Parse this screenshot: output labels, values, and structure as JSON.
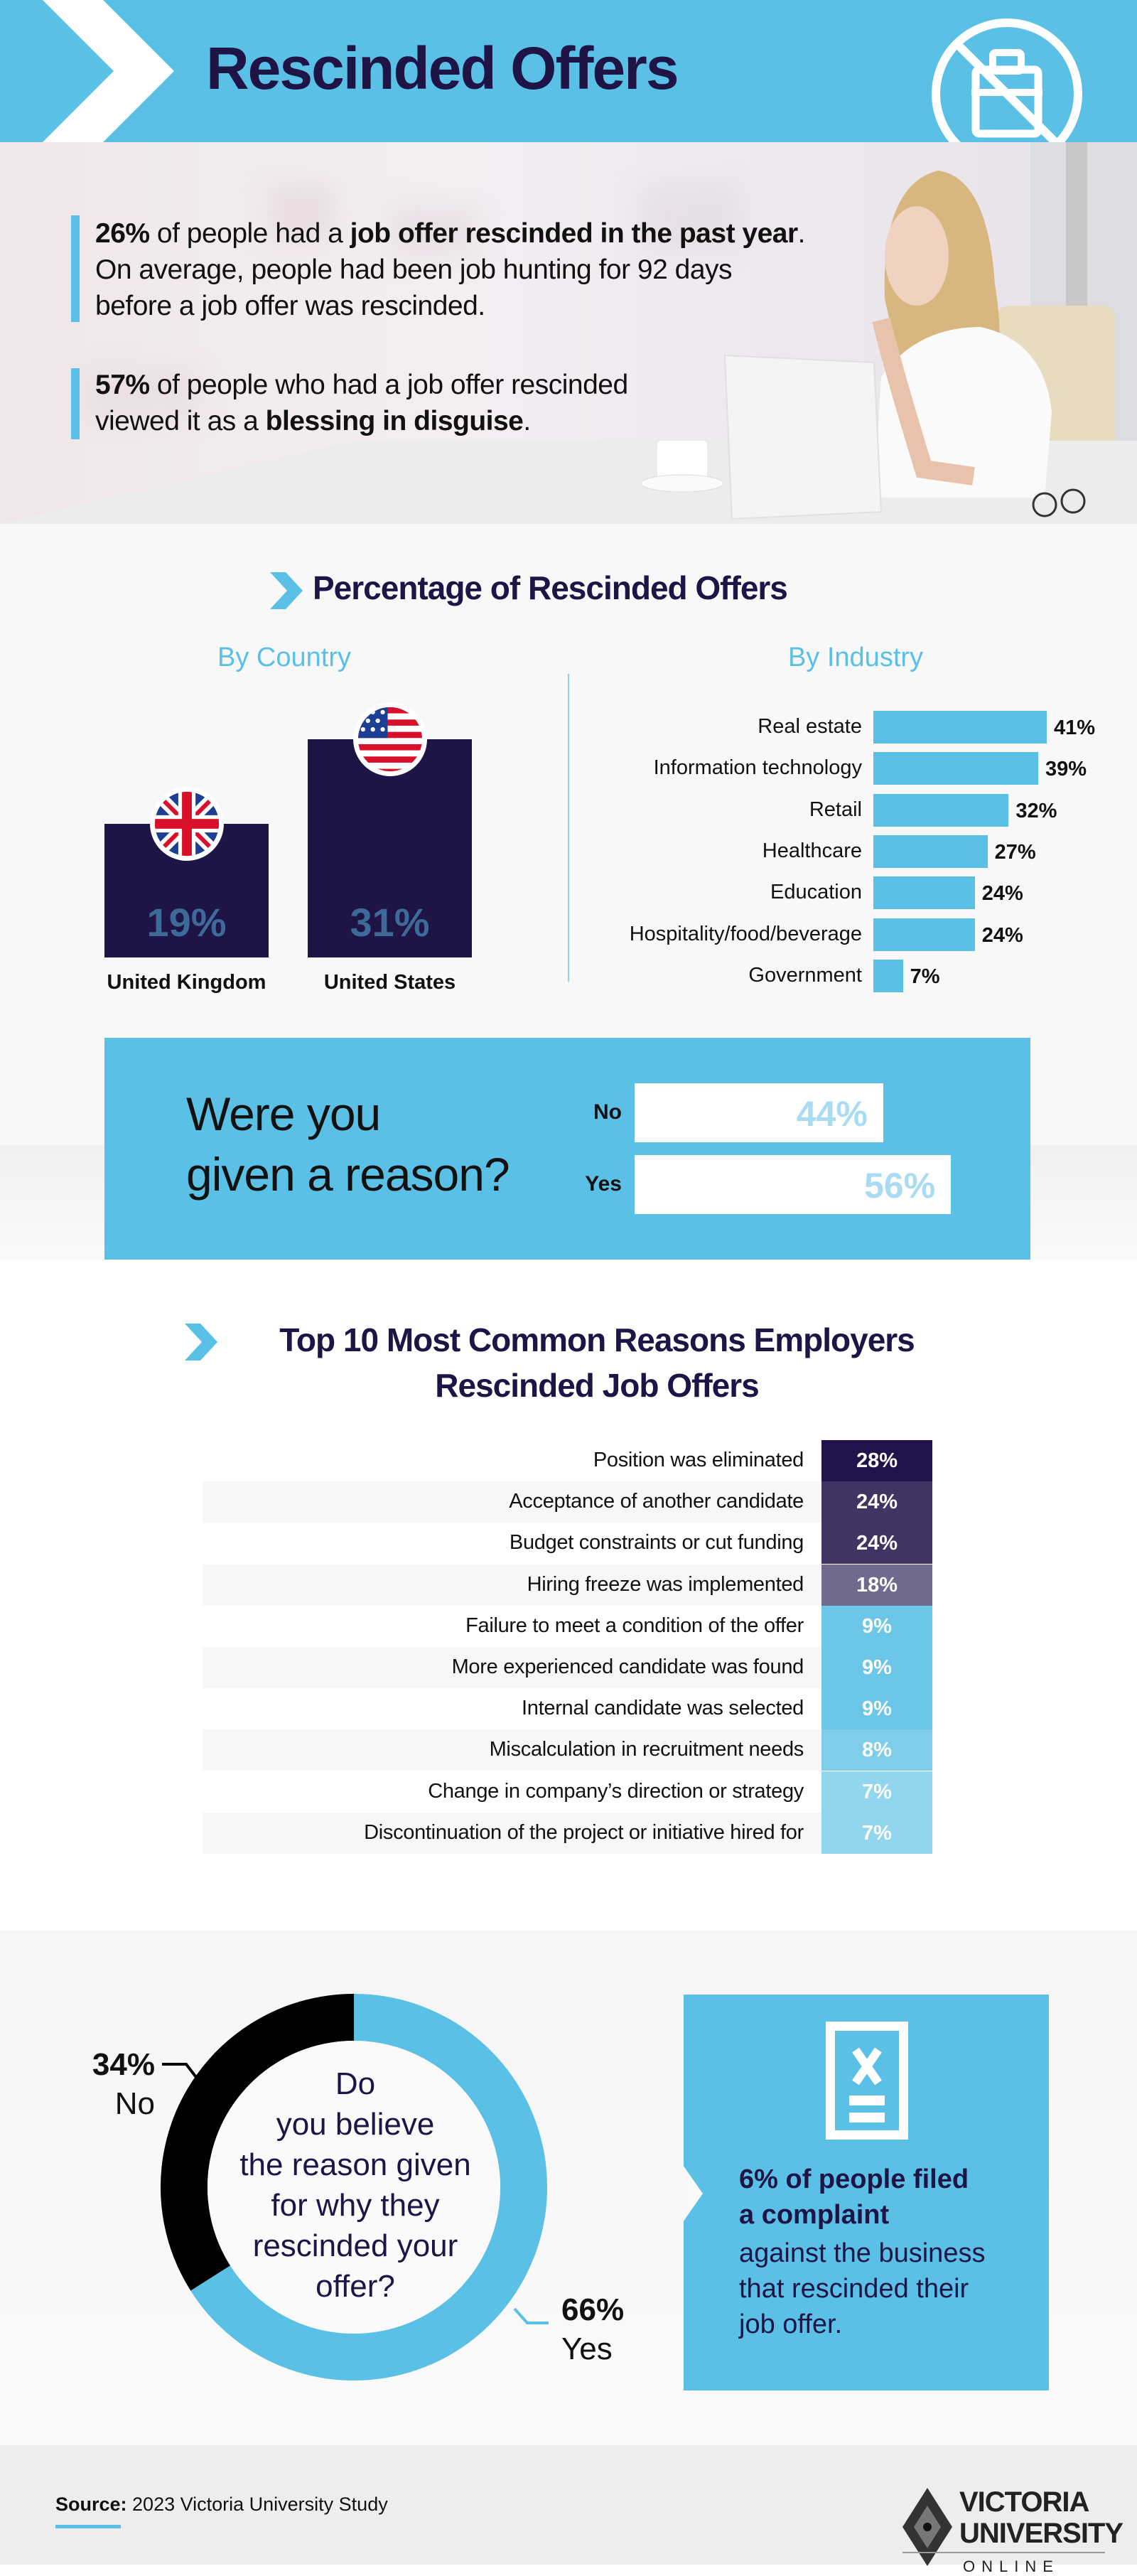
{
  "header": {
    "title": "Rescinded Offers",
    "icon": "no-briefcase-icon",
    "accent": "#5bc0e6",
    "navy": "#1e1446"
  },
  "hero": {
    "stat1": {
      "pct": "26%",
      "pre": " of people had a ",
      "bold": "job offer rescinded in the past year",
      "post": ". On average, people had been job hunting for 92 days before a job offer was rescinded."
    },
    "stat2": {
      "pct": "57%",
      "pre": " of people who had a job offer rescinded viewed it as a ",
      "bold": "blessing in disguise",
      "post": "."
    }
  },
  "section_pct": {
    "title": "Percentage of Rescinded Offers",
    "by_country": "By Country",
    "by_industry": "By Industry"
  },
  "reason_question": {
    "line1": "Were you",
    "line2": "given a reason?"
  },
  "section_top10": {
    "title_line1": "Top 10 Most Common Reasons Employers",
    "title_line2": "Rescinded Job Offers"
  },
  "donut_question": [
    "Do",
    "you believe",
    "the reason given",
    "for why they",
    "rescinded your",
    "offer?"
  ],
  "complaint": {
    "bold1": "6% of people filed",
    "bold2": "a complaint",
    "rest1": "against the business",
    "rest2": "that rescinded their",
    "rest3": "job offer.",
    "icon": "document-x-icon"
  },
  "footer": {
    "source_label": "Source:",
    "source_text": " 2023 Victoria University Study",
    "logo_line1": "VICTORIA",
    "logo_line2": "UNIVERSITY",
    "logo_line3": "ONLINE"
  },
  "chart_data": [
    {
      "type": "bar",
      "title": "By Country",
      "categories": [
        "United Kingdom",
        "United States"
      ],
      "values": [
        19,
        31
      ],
      "labels": [
        "19%",
        "31%"
      ],
      "color": "#1f1446"
    },
    {
      "type": "bar",
      "orientation": "horizontal",
      "title": "By Industry",
      "categories": [
        "Real estate",
        "Information technology",
        "Retail",
        "Healthcare",
        "Education",
        "Hospitality/food/beverage",
        "Government"
      ],
      "values": [
        41,
        39,
        32,
        27,
        24,
        24,
        7
      ],
      "labels": [
        "41%",
        "39%",
        "32%",
        "27%",
        "24%",
        "24%",
        "7%"
      ],
      "color": "#5bc0e6"
    },
    {
      "type": "bar",
      "orientation": "horizontal",
      "categories": [
        "No",
        "Yes"
      ],
      "values": [
        44,
        56
      ],
      "labels": [
        "44%",
        "56%"
      ]
    },
    {
      "type": "table",
      "rows": [
        {
          "label": "Position was eliminated",
          "value": 28,
          "text": "28%",
          "color": "#20144a"
        },
        {
          "label": "Acceptance of another candidate",
          "value": 24,
          "text": "24%",
          "color": "#413463"
        },
        {
          "label": "Budget constraints or cut funding",
          "value": 24,
          "text": "24%",
          "color": "#413463"
        },
        {
          "label": "Hiring freeze was implemented",
          "value": 18,
          "text": "18%",
          "color": "#706a8c"
        },
        {
          "label": "Failure to meet a condition of the offer",
          "value": 9,
          "text": "9%",
          "color": "#6cc6e8"
        },
        {
          "label": "More experienced candidate was found",
          "value": 9,
          "text": "9%",
          "color": "#6cc6e8"
        },
        {
          "label": "Internal candidate was selected",
          "value": 9,
          "text": "9%",
          "color": "#6cc6e8"
        },
        {
          "label": "Miscalculation in recruitment needs",
          "value": 8,
          "text": "8%",
          "color": "#7ecdeb"
        },
        {
          "label": "Change in company’s direction or strategy",
          "value": 7,
          "text": "7%",
          "color": "#92d5ef"
        },
        {
          "label": "Discontinuation of the project or initiative hired for",
          "value": 7,
          "text": "7%",
          "color": "#92d5ef"
        }
      ]
    },
    {
      "type": "pie",
      "donut": true,
      "slices": [
        {
          "name": "No",
          "value": 34,
          "text": "34%",
          "color": "#000000"
        },
        {
          "name": "Yes",
          "value": 66,
          "text": "66%",
          "color": "#5bc0e6"
        }
      ]
    }
  ]
}
